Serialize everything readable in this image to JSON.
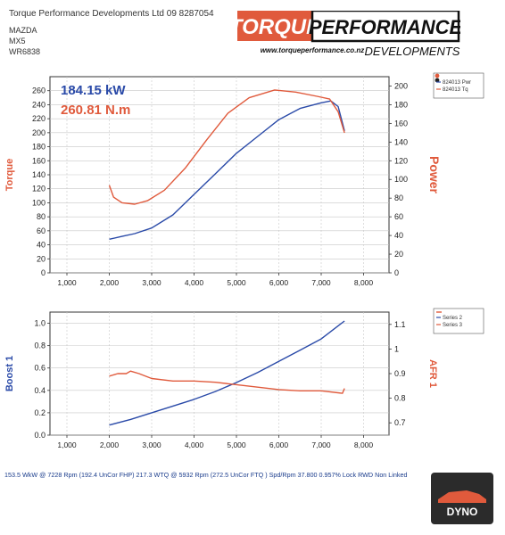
{
  "header": {
    "company": "Torque Performance Developments Ltd 09 8287054",
    "make": "MAZDA",
    "model": "MX5",
    "registration": "WR6838"
  },
  "logo": {
    "word1": "TORQUE",
    "word2": "PERFORMANCE",
    "url": "www.torqueperformance.co.nz",
    "tagline": "DEVELOPMENTS"
  },
  "footer": {
    "summary": "153.5 WkW @ 7228 Rpm (192.4 UnCor FHP)  217.3 WTQ @ 5932 Rpm (272.5 UnCor FTQ ) Spd/Rpm 37.800 0.957% Lock RWD Non Linked"
  },
  "badge": {
    "text": "DYNO"
  },
  "colors": {
    "blue": "#2a4aa8",
    "red": "#e05a3c",
    "grid": "#c8c8c8",
    "bg": "#ffffff"
  },
  "chart_data": [
    {
      "type": "line",
      "annotations": [
        "184.15 kW",
        "260.81 N.m"
      ],
      "ylabel": "Torque",
      "ylabel_right": "Power",
      "xlim": [
        600,
        8600
      ],
      "xticks": [
        "1,000",
        "2,000",
        "3,000",
        "4,000",
        "5,000",
        "6,000",
        "7,000",
        "8,000"
      ],
      "xtick_values": [
        1000,
        2000,
        3000,
        4000,
        5000,
        6000,
        7000,
        8000
      ],
      "ylim": [
        0,
        280
      ],
      "yticks": [
        0,
        20,
        40,
        60,
        80,
        100,
        120,
        140,
        160,
        180,
        200,
        220,
        240,
        260
      ],
      "ylim_right": [
        0,
        210
      ],
      "yticks_right": [
        0,
        20,
        40,
        60,
        80,
        100,
        120,
        140,
        160,
        180,
        200
      ],
      "grid": true,
      "legend": "top-right",
      "series": [
        {
          "name": "824013 Pwr",
          "axis": "right",
          "color": "#2a4aa8",
          "x": [
            2000,
            2300,
            2600,
            3000,
            3500,
            4000,
            4500,
            5000,
            5500,
            6000,
            6500,
            7000,
            7228,
            7400,
            7550
          ],
          "y": [
            36,
            39,
            42,
            48,
            62,
            84,
            106,
            128,
            146,
            164,
            176,
            182,
            184,
            178,
            152
          ]
        },
        {
          "name": "824013 Tq",
          "axis": "left",
          "color": "#e05a3c",
          "x": [
            2000,
            2100,
            2300,
            2600,
            2900,
            3300,
            3800,
            4300,
            4800,
            5300,
            5900,
            6400,
            6900,
            7200,
            7400,
            7550
          ],
          "y": [
            125,
            108,
            100,
            98,
            103,
            118,
            150,
            190,
            228,
            250,
            261,
            258,
            252,
            248,
            230,
            200
          ]
        }
      ]
    },
    {
      "type": "line",
      "ylabel": "Boost 1",
      "ylabel_right": "AFR 1",
      "xlim": [
        600,
        8600
      ],
      "xticks": [
        "1,000",
        "2,000",
        "3,000",
        "4,000",
        "5,000",
        "6,000",
        "7,000",
        "8,000"
      ],
      "xtick_values": [
        1000,
        2000,
        3000,
        4000,
        5000,
        6000,
        7000,
        8000
      ],
      "ylim": [
        0,
        1.1
      ],
      "yticks": [
        "0.0",
        "0.2",
        "0.4",
        "0.6",
        "0.8",
        "1.0"
      ],
      "ytick_values": [
        0,
        0.2,
        0.4,
        0.6,
        0.8,
        1.0
      ],
      "ylim_right": [
        0.65,
        1.15
      ],
      "yticks_right": [
        "0.7",
        "0.8",
        "0.9",
        "1",
        "1.1"
      ],
      "ytick_values_right": [
        0.7,
        0.8,
        0.9,
        1.0,
        1.1
      ],
      "grid": true,
      "legend": "top-right",
      "series": [
        {
          "name": "Series 2",
          "axis": "left",
          "color": "#2a4aa8",
          "x": [
            2000,
            2500,
            3000,
            3500,
            4000,
            4500,
            5000,
            5500,
            6000,
            6500,
            7000,
            7550
          ],
          "y": [
            0.09,
            0.14,
            0.2,
            0.26,
            0.32,
            0.39,
            0.47,
            0.56,
            0.66,
            0.76,
            0.86,
            1.02
          ]
        },
        {
          "name": "Series 3",
          "axis": "right",
          "color": "#e05a3c",
          "x": [
            2000,
            2200,
            2400,
            2500,
            2700,
            3000,
            3500,
            4000,
            4500,
            5000,
            5500,
            6000,
            6500,
            7000,
            7500,
            7550
          ],
          "y": [
            0.89,
            0.9,
            0.9,
            0.91,
            0.9,
            0.88,
            0.87,
            0.87,
            0.865,
            0.855,
            0.845,
            0.835,
            0.83,
            0.83,
            0.82,
            0.84
          ]
        }
      ]
    }
  ]
}
